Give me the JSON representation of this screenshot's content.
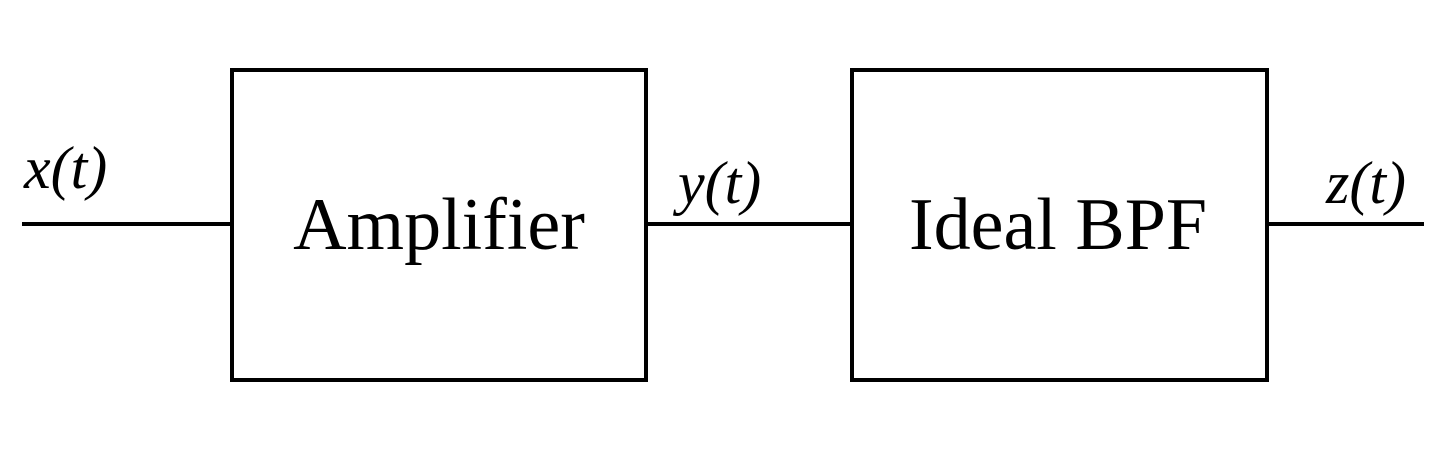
{
  "diagram": {
    "blocks": [
      {
        "id": "amplifier",
        "label": "Amplifier"
      },
      {
        "id": "bpf",
        "label": "Ideal BPF"
      }
    ],
    "signals": [
      {
        "id": "input",
        "label": "x(t)"
      },
      {
        "id": "intermediate",
        "label": "y(t)"
      },
      {
        "id": "output",
        "label": "z(t)"
      }
    ],
    "connections": [
      {
        "from": "input",
        "to": "amplifier"
      },
      {
        "from": "amplifier",
        "to": "bpf"
      },
      {
        "from": "bpf",
        "to": "output"
      }
    ]
  },
  "colors": {
    "stroke": "#000000",
    "background": "#ffffff"
  }
}
